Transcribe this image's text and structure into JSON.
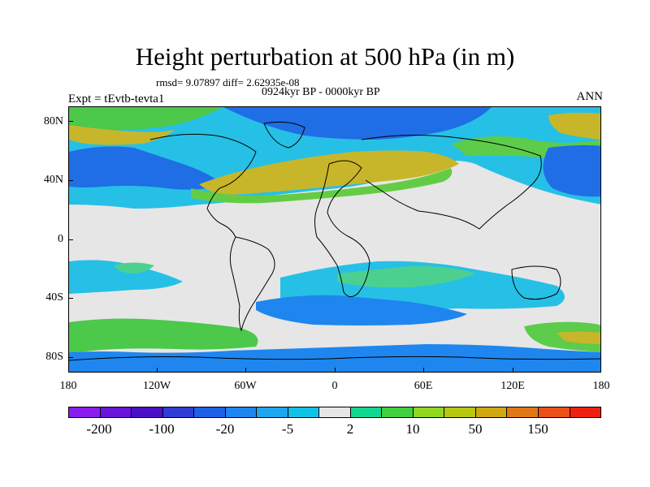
{
  "title": "Height perturbation at 500 hPa (in m)",
  "stats": "rmsd= 9.07897 diff= 2.62935e-08",
  "period": "0924kyr BP - 0000kyr BP",
  "experiment": "Expt = tEvtb-tevta1",
  "season": "ANN",
  "lat_labels": [
    "80N",
    "40N",
    "0",
    "40S",
    "80S"
  ],
  "lon_labels": [
    "180",
    "120W",
    "60W",
    "0",
    "60E",
    "120E",
    "180"
  ],
  "colorbar": {
    "colors": [
      "#8a1cf0",
      "#6a14dc",
      "#4a10c8",
      "#2f3cd6",
      "#1e60e6",
      "#1e86ee",
      "#1ea6ee",
      "#10c2e8",
      "#e6e6e6",
      "#10d890",
      "#40d040",
      "#90d820",
      "#b8c810",
      "#d0a810",
      "#e07818",
      "#ec5018",
      "#f02010"
    ],
    "labels": [
      "-200",
      "-100",
      "-20",
      "-5",
      "2",
      "10",
      "50",
      "150"
    ]
  }
}
